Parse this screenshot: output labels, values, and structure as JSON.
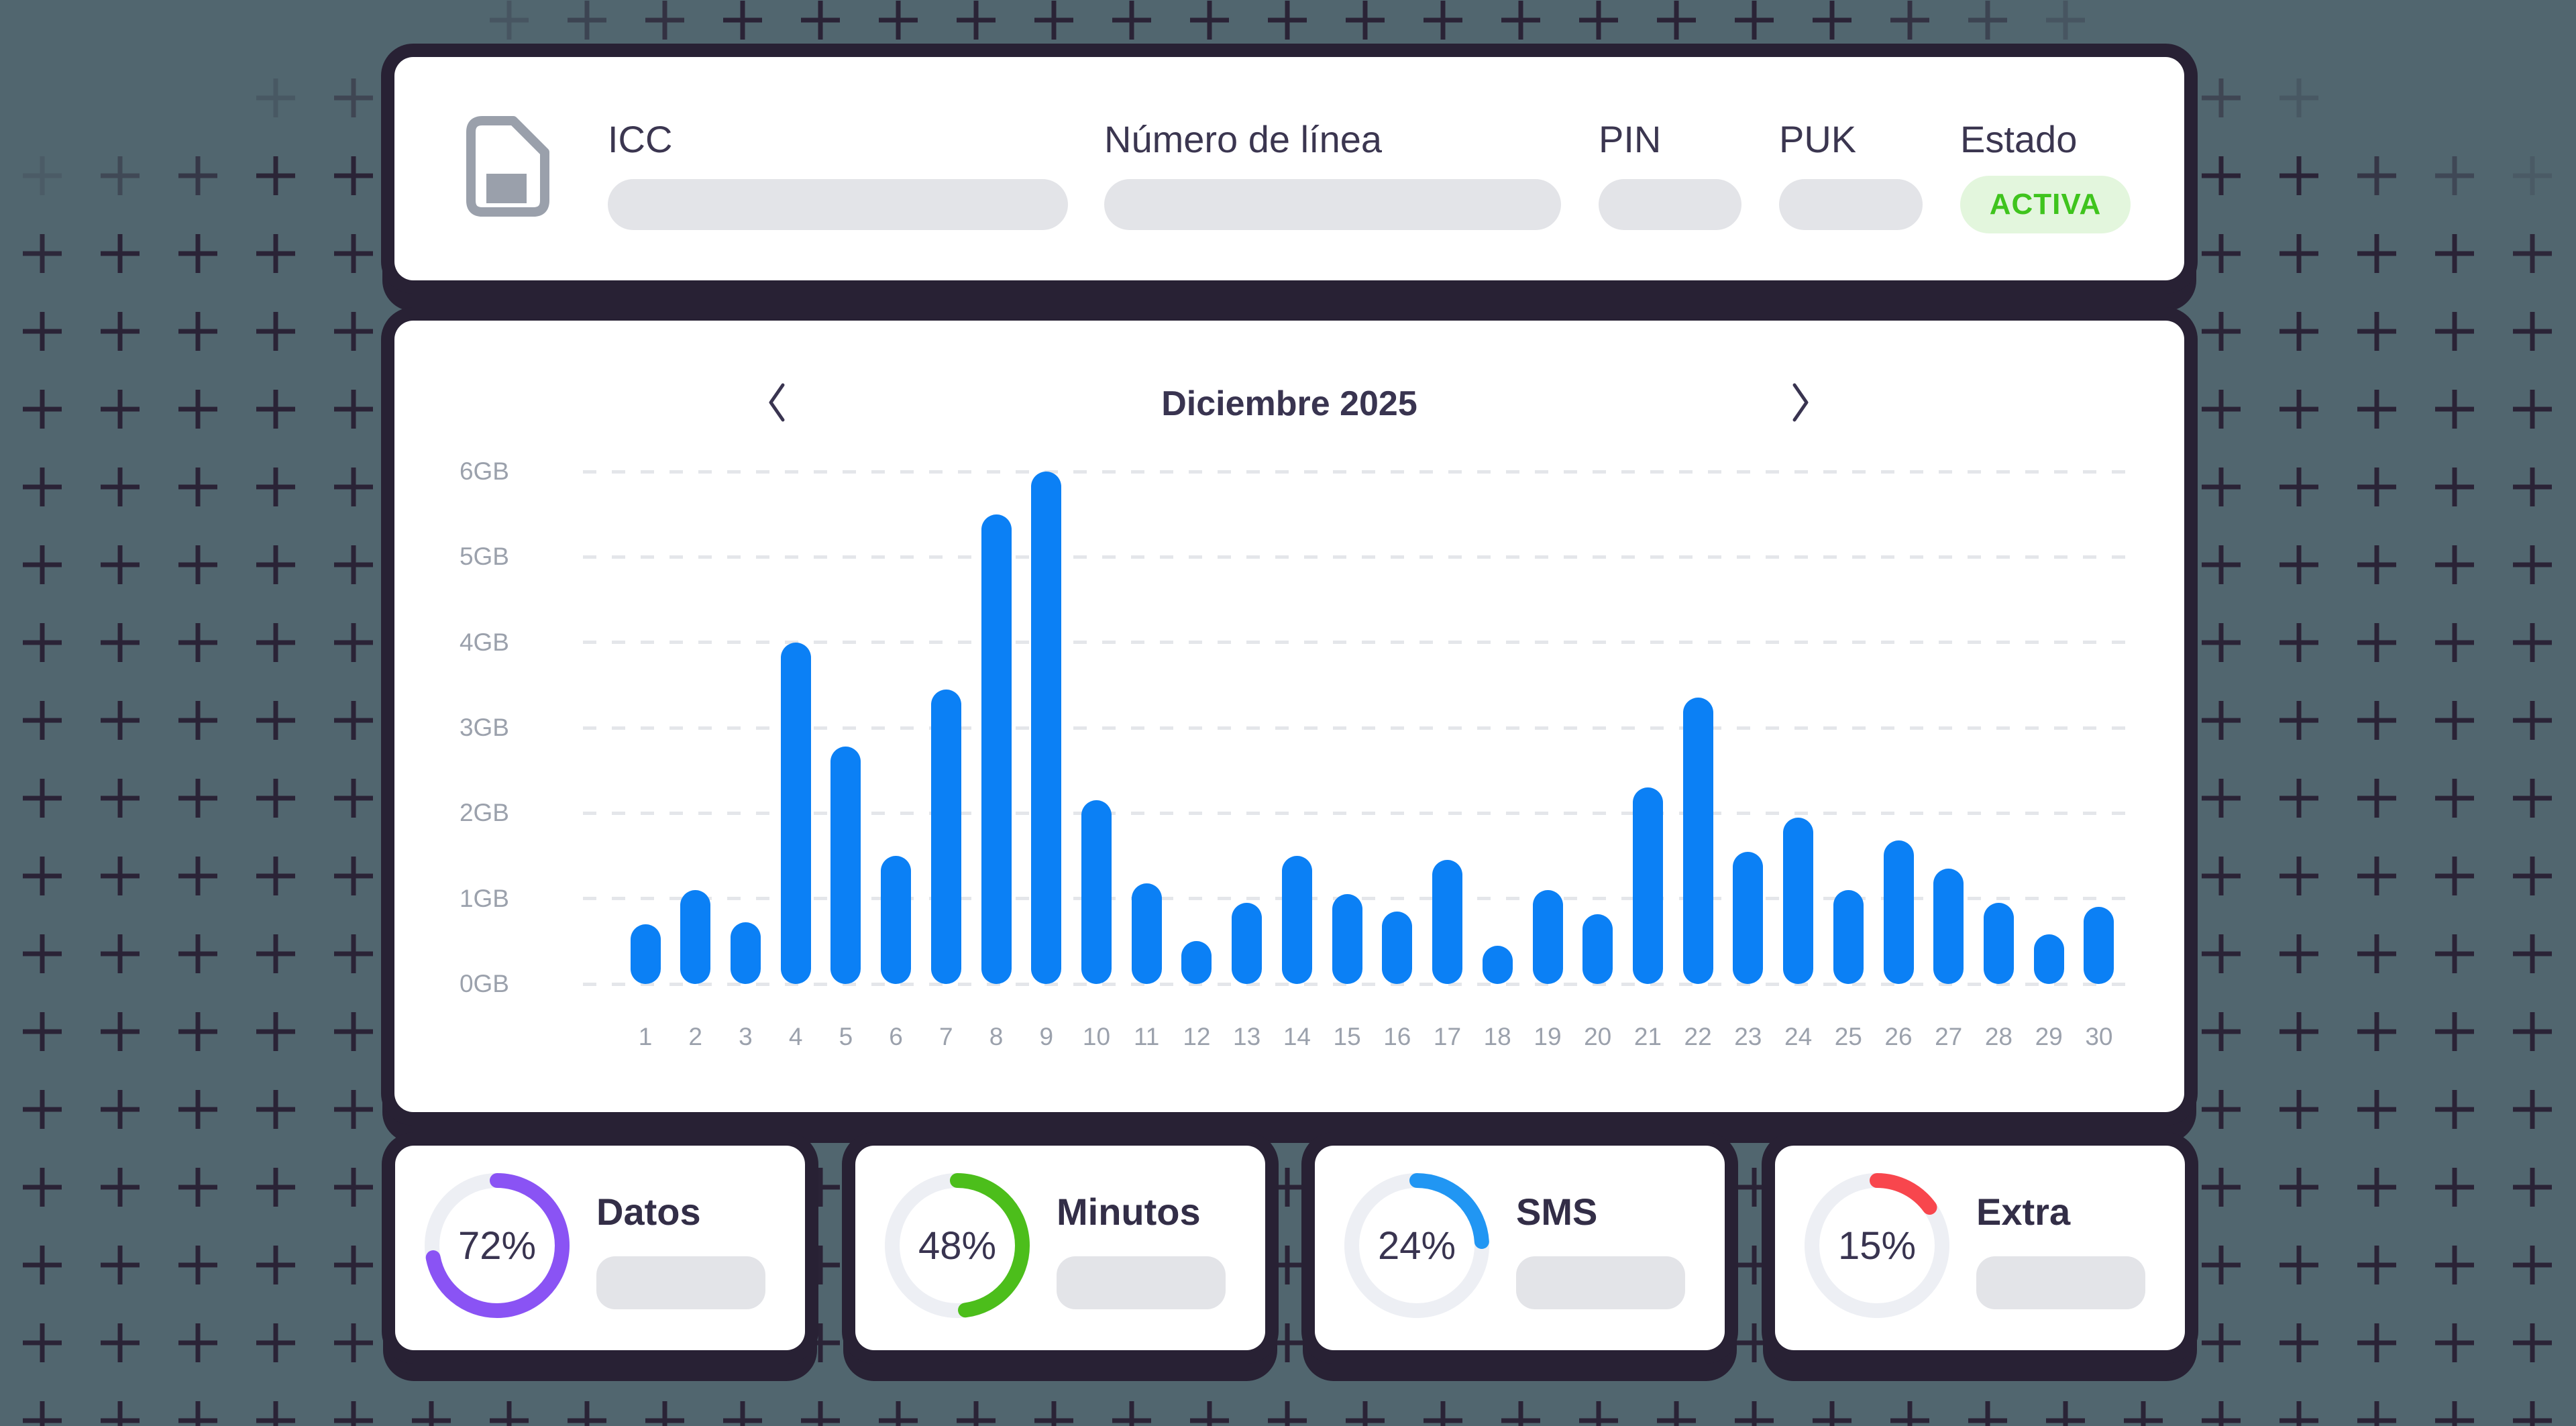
{
  "background": {
    "color": "#51666f",
    "plus_color": "#2a2336"
  },
  "sim_card": {
    "icon": "sim-card-icon",
    "fields": [
      {
        "id": "icc",
        "label": "ICC"
      },
      {
        "id": "numero",
        "label": "Número de línea"
      },
      {
        "id": "pin",
        "label": "PIN"
      },
      {
        "id": "puk",
        "label": "PUK"
      },
      {
        "id": "estado",
        "label": "Estado"
      }
    ],
    "badge": {
      "text": "ACTIVA",
      "bg": "#e3f6dd",
      "color": "#3fc41d"
    }
  },
  "chart": {
    "title": "Diciembre 2025",
    "prev_icon": "chevron-left-icon",
    "next_icon": "chevron-right-icon"
  },
  "chart_data": {
    "type": "bar",
    "title": "Diciembre 2025",
    "unit": "GB",
    "categories": [
      1,
      2,
      3,
      4,
      5,
      6,
      7,
      8,
      9,
      10,
      11,
      12,
      13,
      14,
      15,
      16,
      17,
      18,
      19,
      20,
      21,
      22,
      23,
      24,
      25,
      26,
      27,
      28,
      29,
      30
    ],
    "values": [
      0.7,
      1.1,
      0.72,
      4.0,
      2.78,
      1.5,
      3.45,
      5.5,
      6.0,
      2.15,
      1.18,
      0.5,
      0.95,
      1.5,
      1.05,
      0.85,
      1.45,
      0.45,
      1.1,
      0.82,
      2.3,
      3.35,
      1.55,
      1.95,
      1.1,
      1.68,
      1.35,
      0.95,
      0.58,
      0.9
    ],
    "ytick_labels": [
      "0GB",
      "1GB",
      "2GB",
      "3GB",
      "4GB",
      "5GB",
      "6GB"
    ],
    "ylim": [
      0,
      6
    ],
    "grid": "dashed-horizontal",
    "legend": "none",
    "bar_color": "#0b80f5"
  },
  "usage_cards": [
    {
      "id": "datos",
      "label": "Datos",
      "percent": "72%",
      "value": 72,
      "color": "#8a53f4"
    },
    {
      "id": "minutos",
      "label": "Minutos",
      "percent": "48%",
      "value": 48,
      "color": "#4cbe1b"
    },
    {
      "id": "sms",
      "label": "SMS",
      "percent": "24%",
      "value": 24,
      "color": "#2196f3"
    },
    {
      "id": "extra",
      "label": "Extra",
      "percent": "15%",
      "value": 15,
      "color": "#f8464d"
    }
  ]
}
